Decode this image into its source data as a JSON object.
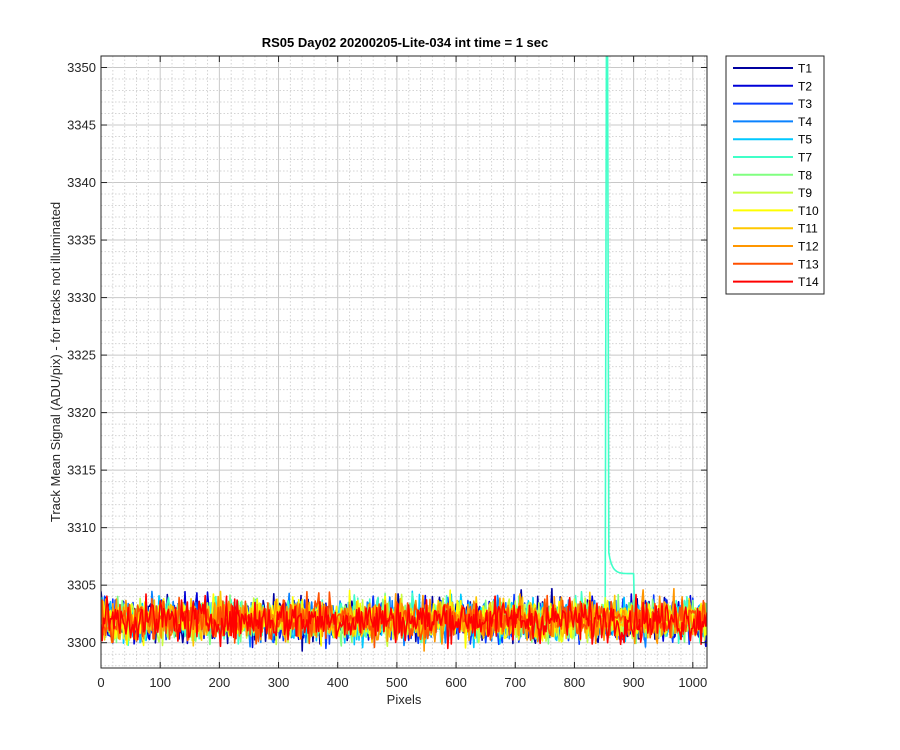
{
  "chart_data": {
    "type": "line",
    "title": "RS05 Day02 20200205-Lite-034 int time = 1 sec",
    "xlabel": "Pixels",
    "ylabel": "Track Mean Signal (ADU/pix) - for tracks not illuminated",
    "xlim": [
      0,
      1024
    ],
    "ylim": [
      3297.8,
      3351
    ],
    "xticks": [
      0,
      100,
      200,
      300,
      400,
      500,
      600,
      700,
      800,
      900,
      1000
    ],
    "yticks": [
      3300,
      3305,
      3310,
      3315,
      3320,
      3325,
      3330,
      3335,
      3340,
      3345,
      3350
    ],
    "grid": true,
    "minor_grid": true,
    "legend_position": "outside-top-right",
    "noise": {
      "baseline": 3302,
      "spread": 1.3,
      "min": 3298,
      "max": 3306.3
    },
    "spike": {
      "series": "T7",
      "x": 855,
      "peak": 3351,
      "tail_end_x": 900,
      "tail_level": 3306
    },
    "series": [
      {
        "name": "T1",
        "color": "#00009f"
      },
      {
        "name": "T2",
        "color": "#0000d8"
      },
      {
        "name": "T3",
        "color": "#0a3cff"
      },
      {
        "name": "T4",
        "color": "#0a82ff"
      },
      {
        "name": "T5",
        "color": "#00c8ff"
      },
      {
        "name": "T7",
        "color": "#40ffc8"
      },
      {
        "name": "T8",
        "color": "#80ff80"
      },
      {
        "name": "T9",
        "color": "#c8ff40"
      },
      {
        "name": "T10",
        "color": "#ffff00"
      },
      {
        "name": "T11",
        "color": "#ffc800"
      },
      {
        "name": "T12",
        "color": "#ff9600"
      },
      {
        "name": "T13",
        "color": "#ff5000"
      },
      {
        "name": "T14",
        "color": "#ff0000"
      }
    ]
  }
}
